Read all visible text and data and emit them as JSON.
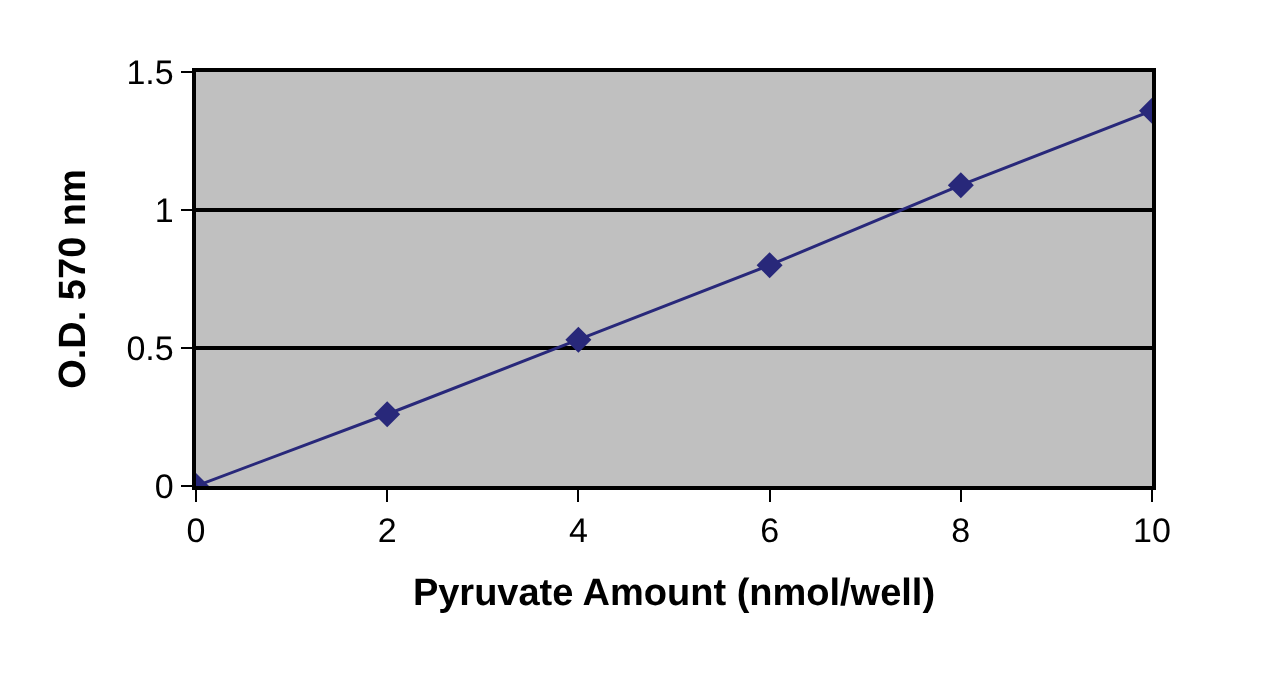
{
  "chart_data": {
    "type": "line",
    "xlabel": "Pyruvate Amount (nmol/well)",
    "ylabel": "O.D. 570 nm",
    "x": [
      0,
      2,
      4,
      6,
      8,
      10
    ],
    "series": [
      {
        "color": "#28287a",
        "values": [
          0,
          0.26,
          0.53,
          0.8,
          1.09,
          1.36
        ]
      }
    ],
    "xlim": [
      0,
      10
    ],
    "xticks": [
      0,
      2,
      4,
      6,
      8,
      10
    ],
    "ylim": [
      0,
      1.5
    ],
    "yticks": [
      0,
      0.5,
      1,
      1.5
    ],
    "grid": "y",
    "marker": "diamond",
    "line_style": "solid"
  }
}
